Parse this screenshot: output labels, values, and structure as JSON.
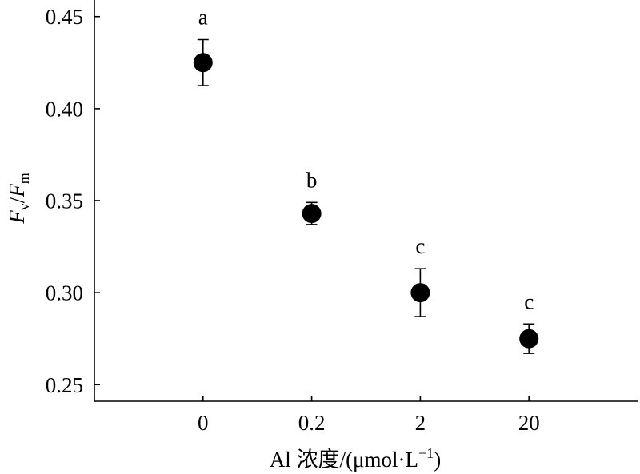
{
  "chart_data": {
    "type": "scatter",
    "categories": [
      "0",
      "0.2",
      "2",
      "20"
    ],
    "values": [
      0.425,
      0.343,
      0.3,
      0.275
    ],
    "errors": [
      0.0125,
      0.006,
      0.013,
      0.008
    ],
    "annotations": [
      "a",
      "b",
      "c",
      "c"
    ],
    "ytick_labels": [
      "0.25",
      "0.30",
      "0.35",
      "0.40",
      "0.45"
    ],
    "ylim": [
      0.241,
      0.459
    ],
    "xlabel": {
      "text": "Al 浓度/(μmol·L",
      "sup": "−1",
      "close": ")"
    },
    "ylabel": {
      "f1": "F",
      "sub1": "v",
      "slash": "/",
      "f2": "F",
      "sub2": "m"
    },
    "grid": false,
    "legend": "none",
    "marker_color": "#000000"
  }
}
